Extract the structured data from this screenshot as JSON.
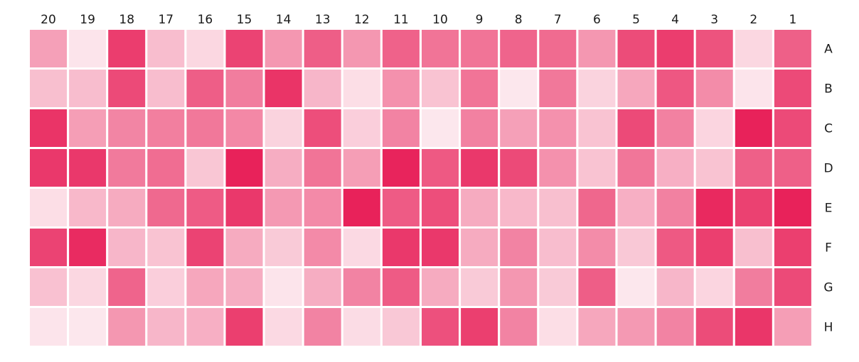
{
  "chart_data": {
    "type": "heatmap",
    "title": "",
    "xlabel": "",
    "ylabel": "",
    "columns": [
      "20",
      "19",
      "18",
      "17",
      "16",
      "15",
      "14",
      "13",
      "12",
      "11",
      "10",
      "9",
      "8",
      "7",
      "6",
      "5",
      "4",
      "3",
      "2",
      "1"
    ],
    "rows": [
      "A",
      "B",
      "C",
      "D",
      "E",
      "F",
      "G",
      "H"
    ],
    "color_low": "#ffffff",
    "color_high": "#e8225a",
    "values": [
      [
        0.43,
        0.12,
        0.88,
        0.3,
        0.18,
        0.85,
        0.47,
        0.73,
        0.47,
        0.71,
        0.63,
        0.63,
        0.7,
        0.67,
        0.47,
        0.81,
        0.88,
        0.78,
        0.18,
        0.72
      ],
      [
        0.29,
        0.3,
        0.82,
        0.3,
        0.73,
        0.59,
        0.92,
        0.33,
        0.15,
        0.5,
        0.27,
        0.63,
        0.11,
        0.61,
        0.2,
        0.4,
        0.76,
        0.52,
        0.12,
        0.82
      ],
      [
        0.92,
        0.44,
        0.55,
        0.58,
        0.61,
        0.54,
        0.2,
        0.8,
        0.22,
        0.56,
        0.11,
        0.57,
        0.43,
        0.5,
        0.27,
        0.82,
        0.57,
        0.19,
        1.0,
        0.82
      ],
      [
        0.9,
        0.9,
        0.6,
        0.66,
        0.26,
        1.0,
        0.37,
        0.63,
        0.44,
        0.99,
        0.75,
        0.9,
        0.82,
        0.5,
        0.27,
        0.62,
        0.36,
        0.27,
        0.72,
        0.72
      ],
      [
        0.15,
        0.32,
        0.38,
        0.68,
        0.74,
        0.9,
        0.46,
        0.53,
        1.0,
        0.74,
        0.8,
        0.38,
        0.32,
        0.29,
        0.69,
        0.36,
        0.57,
        0.97,
        0.86,
        1.0
      ],
      [
        0.85,
        0.96,
        0.33,
        0.27,
        0.85,
        0.38,
        0.24,
        0.53,
        0.17,
        0.9,
        0.9,
        0.38,
        0.56,
        0.3,
        0.52,
        0.25,
        0.75,
        0.87,
        0.29,
        0.87
      ],
      [
        0.28,
        0.18,
        0.7,
        0.22,
        0.4,
        0.37,
        0.12,
        0.37,
        0.56,
        0.74,
        0.38,
        0.24,
        0.47,
        0.24,
        0.73,
        0.11,
        0.33,
        0.19,
        0.59,
        0.82
      ],
      [
        0.12,
        0.11,
        0.47,
        0.33,
        0.36,
        0.87,
        0.17,
        0.56,
        0.16,
        0.25,
        0.79,
        0.87,
        0.56,
        0.15,
        0.4,
        0.46,
        0.56,
        0.81,
        0.91,
        0.44
      ]
    ]
  }
}
